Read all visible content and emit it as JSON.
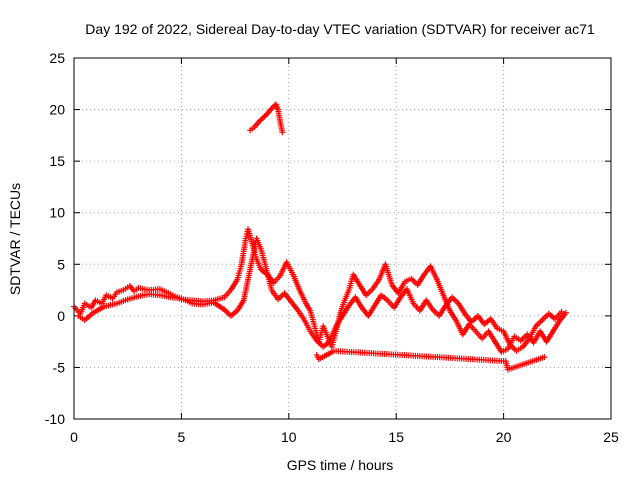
{
  "chart_data": {
    "type": "scatter",
    "title": "Day 192 of 2022, Sidereal Day-to-day VTEC variation (SDTVAR) for receiver ac71",
    "xlabel": "GPS time / hours",
    "ylabel": "SDTVAR / TECUs",
    "xlim": [
      0,
      25
    ],
    "ylim": [
      -10,
      25
    ],
    "x_ticks": [
      "0",
      "5",
      "10",
      "15",
      "20",
      "25"
    ],
    "y_ticks": [
      "-10",
      "-5",
      "0",
      "5",
      "10",
      "15",
      "20",
      "25"
    ],
    "grid": true,
    "marker": "+",
    "series_color": "#ff0000",
    "series": [
      {
        "name": "main",
        "points": [
          [
            0.0,
            0.9
          ],
          [
            0.3,
            0.2
          ],
          [
            0.5,
            1.2
          ],
          [
            0.8,
            0.8
          ],
          [
            1.0,
            1.5
          ],
          [
            1.3,
            1.2
          ],
          [
            1.5,
            2.0
          ],
          [
            1.8,
            1.7
          ],
          [
            2.0,
            2.3
          ],
          [
            2.3,
            2.5
          ],
          [
            2.6,
            2.9
          ],
          [
            2.8,
            2.4
          ],
          [
            3.0,
            2.7
          ],
          [
            3.5,
            2.5
          ],
          [
            4.0,
            2.6
          ],
          [
            4.3,
            2.3
          ],
          [
            4.6,
            2.0
          ],
          [
            5.0,
            1.6
          ],
          [
            5.5,
            1.5
          ],
          [
            6.0,
            1.4
          ],
          [
            6.5,
            1.5
          ],
          [
            7.0,
            1.8
          ],
          [
            7.3,
            2.5
          ],
          [
            7.6,
            3.5
          ],
          [
            7.8,
            5.0
          ],
          [
            8.0,
            7.5
          ],
          [
            8.1,
            8.4
          ],
          [
            8.3,
            7.0
          ],
          [
            8.5,
            5.5
          ],
          [
            8.7,
            4.5
          ],
          [
            9.0,
            4.0
          ],
          [
            9.3,
            3.2
          ],
          [
            9.6,
            3.9
          ],
          [
            9.9,
            5.2
          ],
          [
            10.2,
            4.0
          ],
          [
            10.5,
            2.5
          ],
          [
            10.8,
            1.2
          ],
          [
            11.0,
            0.5
          ],
          [
            11.2,
            -1.0
          ],
          [
            11.4,
            -2.5
          ],
          [
            11.6,
            -1.0
          ],
          [
            11.8,
            -2.0
          ],
          [
            12.0,
            -3.0
          ],
          [
            12.2,
            -1.5
          ],
          [
            12.4,
            0.3
          ],
          [
            12.6,
            1.5
          ],
          [
            12.8,
            2.5
          ],
          [
            13.0,
            4.0
          ],
          [
            13.3,
            3.0
          ],
          [
            13.6,
            2.0
          ],
          [
            13.9,
            2.6
          ],
          [
            14.2,
            3.5
          ],
          [
            14.5,
            5.0
          ],
          [
            14.8,
            3.0
          ],
          [
            15.1,
            2.2
          ],
          [
            15.4,
            3.3
          ],
          [
            15.7,
            3.6
          ],
          [
            16.0,
            3.0
          ],
          [
            16.3,
            4.0
          ],
          [
            16.6,
            4.8
          ],
          [
            16.9,
            3.5
          ],
          [
            17.2,
            2.0
          ],
          [
            17.5,
            0.5
          ],
          [
            17.8,
            -0.5
          ],
          [
            18.1,
            -1.8
          ],
          [
            18.4,
            -0.8
          ],
          [
            18.7,
            -1.5
          ],
          [
            19.0,
            -2.2
          ],
          [
            19.3,
            -1.5
          ],
          [
            19.6,
            -2.5
          ],
          [
            19.9,
            -3.5
          ],
          [
            20.2,
            -3.2
          ],
          [
            20.5,
            -2.0
          ],
          [
            20.8,
            -2.4
          ],
          [
            21.1,
            -1.8
          ],
          [
            21.4,
            -2.6
          ],
          [
            21.7,
            -1.5
          ],
          [
            22.0,
            -2.5
          ],
          [
            22.3,
            -1.5
          ],
          [
            22.6,
            -0.5
          ],
          [
            22.9,
            0.3
          ]
        ]
      },
      {
        "name": "secondary",
        "points": [
          [
            0.2,
            0.0
          ],
          [
            0.5,
            -0.4
          ],
          [
            0.9,
            0.3
          ],
          [
            1.4,
            0.9
          ],
          [
            2.0,
            1.2
          ],
          [
            2.5,
            1.6
          ],
          [
            3.0,
            1.9
          ],
          [
            3.5,
            2.1
          ],
          [
            4.0,
            2.0
          ],
          [
            4.5,
            1.8
          ],
          [
            5.0,
            1.7
          ],
          [
            5.5,
            1.2
          ],
          [
            6.0,
            1.1
          ],
          [
            6.5,
            1.3
          ],
          [
            7.0,
            0.6
          ],
          [
            7.3,
            0.0
          ],
          [
            7.6,
            0.5
          ],
          [
            7.9,
            1.5
          ],
          [
            8.1,
            3.5
          ],
          [
            8.3,
            5.5
          ],
          [
            8.5,
            7.5
          ],
          [
            8.7,
            6.5
          ],
          [
            8.9,
            5.0
          ],
          [
            9.2,
            2.5
          ],
          [
            9.5,
            1.6
          ],
          [
            9.8,
            2.2
          ],
          [
            10.1,
            1.4
          ],
          [
            10.4,
            0.6
          ],
          [
            10.7,
            -0.3
          ],
          [
            11.0,
            -1.5
          ],
          [
            11.3,
            -2.4
          ],
          [
            11.6,
            -3.0
          ],
          [
            11.9,
            -2.5
          ],
          [
            12.2,
            -1.0
          ],
          [
            12.5,
            0.0
          ],
          [
            12.8,
            1.0
          ],
          [
            13.1,
            1.8
          ],
          [
            13.4,
            0.8
          ],
          [
            13.7,
            0.0
          ],
          [
            14.0,
            1.0
          ],
          [
            14.3,
            2.0
          ],
          [
            14.6,
            1.5
          ],
          [
            14.9,
            0.8
          ],
          [
            15.2,
            1.8
          ],
          [
            15.5,
            2.6
          ],
          [
            15.8,
            1.2
          ],
          [
            16.1,
            0.5
          ],
          [
            16.4,
            1.5
          ],
          [
            16.7,
            0.6
          ],
          [
            17.0,
            0.0
          ],
          [
            17.3,
            1.0
          ],
          [
            17.6,
            1.8
          ],
          [
            17.9,
            1.2
          ],
          [
            18.2,
            0.2
          ],
          [
            18.5,
            -0.6
          ],
          [
            18.8,
            0.0
          ],
          [
            19.1,
            -0.8
          ],
          [
            19.4,
            -0.3
          ],
          [
            19.7,
            -1.2
          ],
          [
            20.0,
            -1.5
          ],
          [
            20.3,
            -2.8
          ],
          [
            20.6,
            -3.4
          ],
          [
            20.9,
            -3.0
          ],
          [
            21.2,
            -2.2
          ],
          [
            21.5,
            -1.0
          ],
          [
            21.8,
            -0.4
          ],
          [
            22.1,
            0.2
          ],
          [
            22.4,
            -0.3
          ],
          [
            22.7,
            0.4
          ]
        ]
      },
      {
        "name": "isolated",
        "points": [
          [
            8.2,
            18.0
          ],
          [
            8.4,
            18.3
          ],
          [
            8.6,
            18.8
          ],
          [
            8.8,
            19.2
          ],
          [
            9.0,
            19.6
          ],
          [
            9.2,
            20.1
          ],
          [
            9.4,
            20.5
          ],
          [
            9.5,
            20.0
          ],
          [
            9.6,
            18.8
          ],
          [
            9.7,
            17.8
          ]
        ]
      },
      {
        "name": "drops",
        "points": [
          [
            11.3,
            -3.8
          ],
          [
            11.4,
            -4.2
          ],
          [
            12.1,
            -3.4
          ],
          [
            20.1,
            -4.4
          ],
          [
            20.2,
            -5.2
          ],
          [
            21.9,
            -4.0
          ]
        ]
      }
    ]
  }
}
